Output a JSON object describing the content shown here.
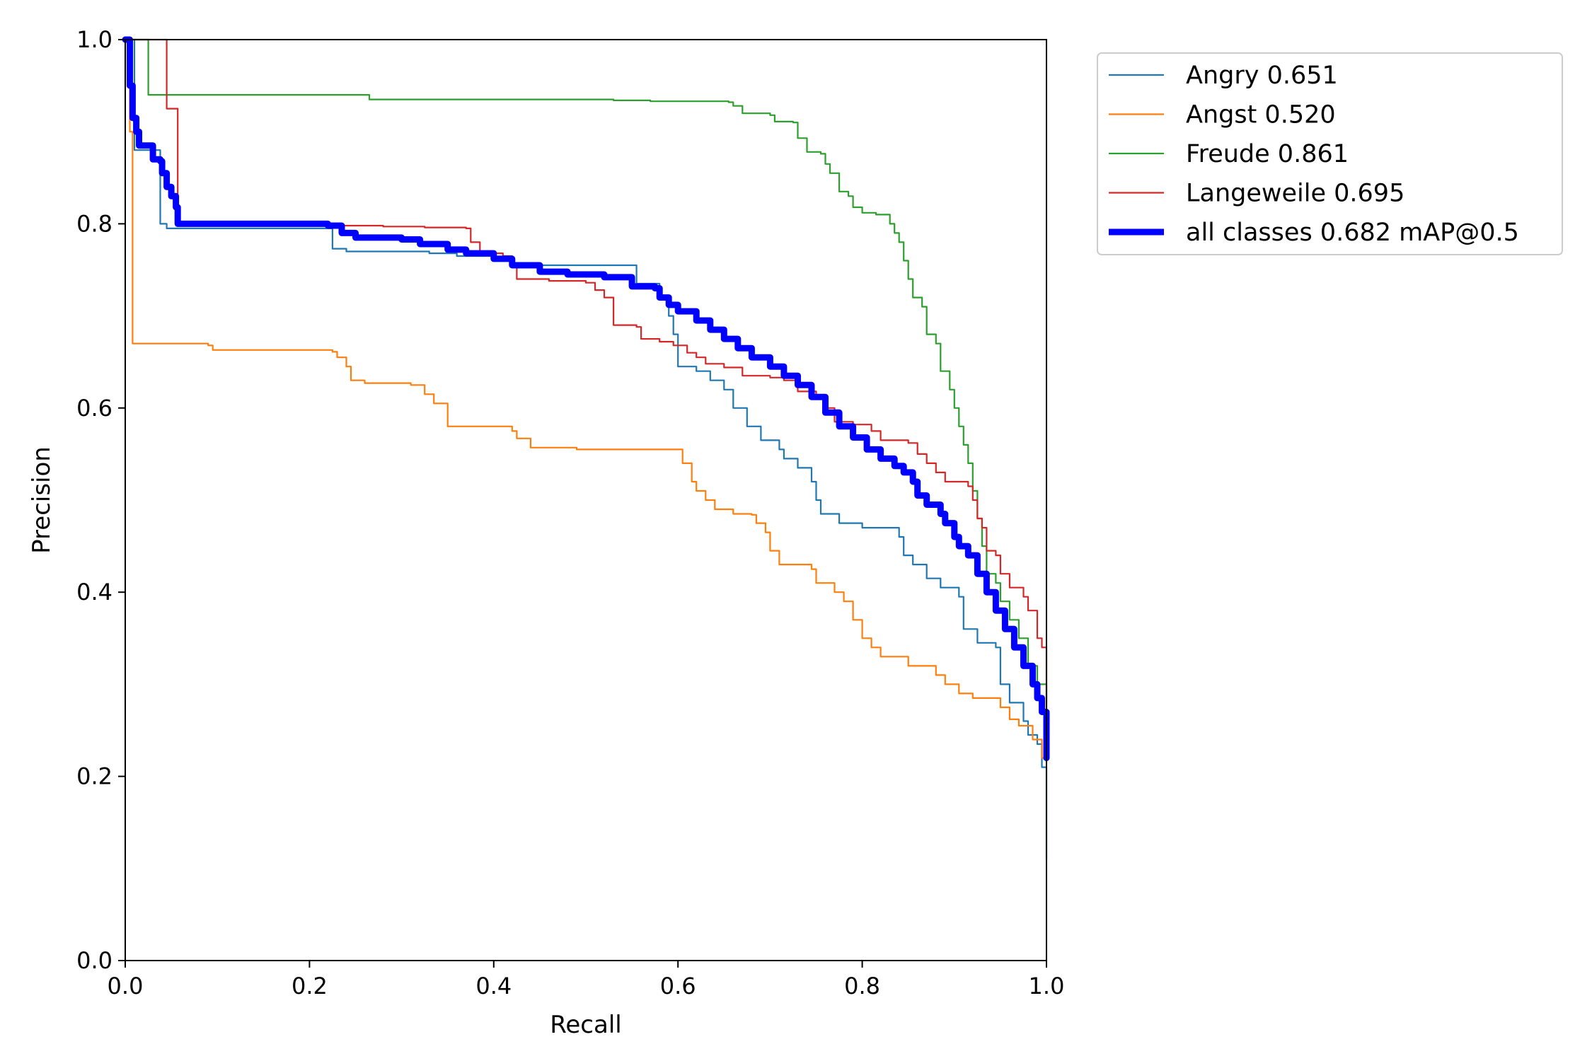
{
  "chart_data": {
    "type": "line",
    "title": "",
    "xlabel": "Recall",
    "ylabel": "Precision",
    "xlim": [
      0,
      1
    ],
    "ylim": [
      0,
      1
    ],
    "x_ticks": [
      "0.0",
      "0.2",
      "0.4",
      "0.6",
      "0.8",
      "1.0"
    ],
    "y_ticks": [
      "0.0",
      "0.2",
      "0.4",
      "0.6",
      "0.8",
      "1.0"
    ],
    "grid": false,
    "legend_position": "outside-top-right",
    "series": [
      {
        "name": "Angry 0.651",
        "color": "#1f77b4",
        "emphasis": false,
        "points": [
          [
            0,
            1.0
          ],
          [
            0.005,
            1.0
          ],
          [
            0.01,
            0.88
          ],
          [
            0.03,
            0.88
          ],
          [
            0.038,
            0.86
          ],
          [
            0.038,
            0.8
          ],
          [
            0.045,
            0.795
          ],
          [
            0.22,
            0.795
          ],
          [
            0.225,
            0.773
          ],
          [
            0.24,
            0.77
          ],
          [
            0.33,
            0.768
          ],
          [
            0.36,
            0.765
          ],
          [
            0.4,
            0.76
          ],
          [
            0.42,
            0.755
          ],
          [
            0.55,
            0.755
          ],
          [
            0.555,
            0.735
          ],
          [
            0.58,
            0.735
          ],
          [
            0.58,
            0.72
          ],
          [
            0.59,
            0.7
          ],
          [
            0.595,
            0.68
          ],
          [
            0.6,
            0.645
          ],
          [
            0.62,
            0.64
          ],
          [
            0.635,
            0.63
          ],
          [
            0.65,
            0.62
          ],
          [
            0.66,
            0.6
          ],
          [
            0.675,
            0.58
          ],
          [
            0.69,
            0.565
          ],
          [
            0.71,
            0.555
          ],
          [
            0.715,
            0.545
          ],
          [
            0.73,
            0.535
          ],
          [
            0.745,
            0.52
          ],
          [
            0.75,
            0.5
          ],
          [
            0.755,
            0.485
          ],
          [
            0.775,
            0.475
          ],
          [
            0.8,
            0.47
          ],
          [
            0.84,
            0.46
          ],
          [
            0.845,
            0.44
          ],
          [
            0.855,
            0.43
          ],
          [
            0.87,
            0.415
          ],
          [
            0.885,
            0.405
          ],
          [
            0.905,
            0.395
          ],
          [
            0.91,
            0.36
          ],
          [
            0.925,
            0.345
          ],
          [
            0.945,
            0.34
          ],
          [
            0.95,
            0.3
          ],
          [
            0.96,
            0.28
          ],
          [
            0.975,
            0.26
          ],
          [
            0.98,
            0.245
          ],
          [
            0.99,
            0.235
          ],
          [
            0.995,
            0.21
          ],
          [
            1.0,
            0.11
          ]
        ]
      },
      {
        "name": "Angst 0.520",
        "color": "#ff7f0e",
        "emphasis": false,
        "points": [
          [
            0,
            1.0
          ],
          [
            0.005,
            0.9
          ],
          [
            0.008,
            0.67
          ],
          [
            0.09,
            0.668
          ],
          [
            0.095,
            0.663
          ],
          [
            0.225,
            0.661
          ],
          [
            0.23,
            0.655
          ],
          [
            0.24,
            0.645
          ],
          [
            0.245,
            0.63
          ],
          [
            0.26,
            0.627
          ],
          [
            0.31,
            0.625
          ],
          [
            0.325,
            0.615
          ],
          [
            0.335,
            0.605
          ],
          [
            0.35,
            0.58
          ],
          [
            0.42,
            0.575
          ],
          [
            0.425,
            0.567
          ],
          [
            0.44,
            0.557
          ],
          [
            0.49,
            0.555
          ],
          [
            0.6,
            0.555
          ],
          [
            0.605,
            0.54
          ],
          [
            0.615,
            0.52
          ],
          [
            0.62,
            0.51
          ],
          [
            0.63,
            0.5
          ],
          [
            0.64,
            0.49
          ],
          [
            0.66,
            0.485
          ],
          [
            0.68,
            0.484
          ],
          [
            0.685,
            0.475
          ],
          [
            0.695,
            0.465
          ],
          [
            0.7,
            0.445
          ],
          [
            0.71,
            0.43
          ],
          [
            0.745,
            0.425
          ],
          [
            0.75,
            0.41
          ],
          [
            0.77,
            0.4
          ],
          [
            0.78,
            0.39
          ],
          [
            0.79,
            0.37
          ],
          [
            0.8,
            0.35
          ],
          [
            0.81,
            0.34
          ],
          [
            0.82,
            0.33
          ],
          [
            0.85,
            0.32
          ],
          [
            0.88,
            0.31
          ],
          [
            0.89,
            0.3
          ],
          [
            0.905,
            0.29
          ],
          [
            0.92,
            0.285
          ],
          [
            0.95,
            0.275
          ],
          [
            0.96,
            0.262
          ],
          [
            0.97,
            0.255
          ],
          [
            0.985,
            0.24
          ],
          [
            0.995,
            0.22
          ],
          [
            1.0,
            0.215
          ]
        ]
      },
      {
        "name": "Freude 0.861",
        "color": "#2ca02c",
        "emphasis": false,
        "points": [
          [
            0,
            1.0
          ],
          [
            0.02,
            1.0
          ],
          [
            0.025,
            0.94
          ],
          [
            0.15,
            0.94
          ],
          [
            0.26,
            0.94
          ],
          [
            0.265,
            0.935
          ],
          [
            0.53,
            0.934
          ],
          [
            0.57,
            0.933
          ],
          [
            0.655,
            0.932
          ],
          [
            0.66,
            0.928
          ],
          [
            0.67,
            0.92
          ],
          [
            0.7,
            0.918
          ],
          [
            0.705,
            0.911
          ],
          [
            0.725,
            0.91
          ],
          [
            0.73,
            0.893
          ],
          [
            0.74,
            0.878
          ],
          [
            0.755,
            0.876
          ],
          [
            0.76,
            0.865
          ],
          [
            0.765,
            0.855
          ],
          [
            0.775,
            0.835
          ],
          [
            0.785,
            0.83
          ],
          [
            0.79,
            0.818
          ],
          [
            0.8,
            0.812
          ],
          [
            0.815,
            0.81
          ],
          [
            0.83,
            0.8
          ],
          [
            0.835,
            0.79
          ],
          [
            0.84,
            0.78
          ],
          [
            0.845,
            0.76
          ],
          [
            0.85,
            0.74
          ],
          [
            0.855,
            0.72
          ],
          [
            0.865,
            0.71
          ],
          [
            0.87,
            0.68
          ],
          [
            0.88,
            0.67
          ],
          [
            0.885,
            0.64
          ],
          [
            0.895,
            0.62
          ],
          [
            0.9,
            0.6
          ],
          [
            0.905,
            0.58
          ],
          [
            0.91,
            0.56
          ],
          [
            0.915,
            0.54
          ],
          [
            0.92,
            0.51
          ],
          [
            0.925,
            0.48
          ],
          [
            0.93,
            0.45
          ],
          [
            0.935,
            0.42
          ],
          [
            0.945,
            0.41
          ],
          [
            0.95,
            0.39
          ],
          [
            0.96,
            0.37
          ],
          [
            0.97,
            0.35
          ],
          [
            0.98,
            0.32
          ],
          [
            0.99,
            0.3
          ],
          [
            1.0,
            0.28
          ]
        ]
      },
      {
        "name": "Langeweile 0.695",
        "color": "#d62728",
        "emphasis": false,
        "points": [
          [
            0,
            1.0
          ],
          [
            0.045,
            1.0
          ],
          [
            0.045,
            0.925
          ],
          [
            0.055,
            0.925
          ],
          [
            0.057,
            0.8
          ],
          [
            0.22,
            0.8
          ],
          [
            0.235,
            0.798
          ],
          [
            0.28,
            0.797
          ],
          [
            0.325,
            0.796
          ],
          [
            0.37,
            0.795
          ],
          [
            0.375,
            0.78
          ],
          [
            0.385,
            0.768
          ],
          [
            0.41,
            0.765
          ],
          [
            0.42,
            0.755
          ],
          [
            0.425,
            0.74
          ],
          [
            0.46,
            0.738
          ],
          [
            0.5,
            0.736
          ],
          [
            0.51,
            0.728
          ],
          [
            0.52,
            0.72
          ],
          [
            0.53,
            0.69
          ],
          [
            0.555,
            0.688
          ],
          [
            0.56,
            0.675
          ],
          [
            0.58,
            0.672
          ],
          [
            0.595,
            0.668
          ],
          [
            0.61,
            0.66
          ],
          [
            0.62,
            0.655
          ],
          [
            0.63,
            0.648
          ],
          [
            0.65,
            0.644
          ],
          [
            0.67,
            0.635
          ],
          [
            0.7,
            0.633
          ],
          [
            0.715,
            0.63
          ],
          [
            0.73,
            0.618
          ],
          [
            0.75,
            0.612
          ],
          [
            0.76,
            0.6
          ],
          [
            0.77,
            0.585
          ],
          [
            0.79,
            0.582
          ],
          [
            0.81,
            0.575
          ],
          [
            0.82,
            0.565
          ],
          [
            0.85,
            0.562
          ],
          [
            0.86,
            0.55
          ],
          [
            0.87,
            0.54
          ],
          [
            0.88,
            0.53
          ],
          [
            0.89,
            0.52
          ],
          [
            0.915,
            0.515
          ],
          [
            0.92,
            0.5
          ],
          [
            0.925,
            0.48
          ],
          [
            0.93,
            0.47
          ],
          [
            0.935,
            0.445
          ],
          [
            0.945,
            0.44
          ],
          [
            0.95,
            0.42
          ],
          [
            0.96,
            0.405
          ],
          [
            0.975,
            0.395
          ],
          [
            0.98,
            0.38
          ],
          [
            0.99,
            0.35
          ],
          [
            0.995,
            0.34
          ],
          [
            1.0,
            0.22
          ]
        ]
      },
      {
        "name": "all classes 0.682 mAP@0.5",
        "color": "#0000ff",
        "emphasis": true,
        "points": [
          [
            0,
            1.0
          ],
          [
            0.005,
            0.95
          ],
          [
            0.008,
            0.915
          ],
          [
            0.012,
            0.9
          ],
          [
            0.015,
            0.885
          ],
          [
            0.025,
            0.885
          ],
          [
            0.03,
            0.87
          ],
          [
            0.038,
            0.868
          ],
          [
            0.04,
            0.855
          ],
          [
            0.045,
            0.84
          ],
          [
            0.05,
            0.83
          ],
          [
            0.055,
            0.818
          ],
          [
            0.057,
            0.8
          ],
          [
            0.1,
            0.8
          ],
          [
            0.22,
            0.798
          ],
          [
            0.235,
            0.79
          ],
          [
            0.25,
            0.785
          ],
          [
            0.3,
            0.783
          ],
          [
            0.32,
            0.778
          ],
          [
            0.35,
            0.772
          ],
          [
            0.37,
            0.768
          ],
          [
            0.4,
            0.762
          ],
          [
            0.42,
            0.755
          ],
          [
            0.45,
            0.748
          ],
          [
            0.48,
            0.745
          ],
          [
            0.52,
            0.742
          ],
          [
            0.55,
            0.732
          ],
          [
            0.575,
            0.73
          ],
          [
            0.58,
            0.72
          ],
          [
            0.59,
            0.712
          ],
          [
            0.6,
            0.705
          ],
          [
            0.62,
            0.695
          ],
          [
            0.635,
            0.685
          ],
          [
            0.65,
            0.675
          ],
          [
            0.665,
            0.665
          ],
          [
            0.68,
            0.655
          ],
          [
            0.7,
            0.645
          ],
          [
            0.715,
            0.635
          ],
          [
            0.73,
            0.625
          ],
          [
            0.745,
            0.612
          ],
          [
            0.76,
            0.595
          ],
          [
            0.775,
            0.58
          ],
          [
            0.79,
            0.568
          ],
          [
            0.805,
            0.555
          ],
          [
            0.82,
            0.545
          ],
          [
            0.835,
            0.537
          ],
          [
            0.845,
            0.53
          ],
          [
            0.855,
            0.52
          ],
          [
            0.86,
            0.505
          ],
          [
            0.87,
            0.495
          ],
          [
            0.885,
            0.485
          ],
          [
            0.89,
            0.475
          ],
          [
            0.9,
            0.46
          ],
          [
            0.905,
            0.45
          ],
          [
            0.915,
            0.44
          ],
          [
            0.925,
            0.42
          ],
          [
            0.935,
            0.4
          ],
          [
            0.945,
            0.38
          ],
          [
            0.955,
            0.36
          ],
          [
            0.965,
            0.34
          ],
          [
            0.975,
            0.32
          ],
          [
            0.985,
            0.3
          ],
          [
            0.99,
            0.285
          ],
          [
            0.995,
            0.27
          ],
          [
            1.0,
            0.22
          ]
        ]
      }
    ]
  }
}
